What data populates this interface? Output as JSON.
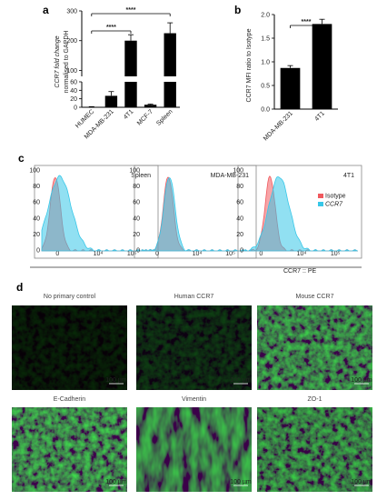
{
  "panels": {
    "a": "a",
    "b": "b",
    "c": "c",
    "d": "d"
  },
  "chart_data": [
    {
      "id": "a",
      "type": "bar",
      "ylabel_line1": "CCR7 fold change",
      "ylabel_line2": "normalised to GAPDH",
      "categories": [
        "HUMEC",
        "MDA-MB-231",
        "4T1",
        "MCF-7",
        "Spleen"
      ],
      "values": [
        1,
        27,
        200,
        6,
        225
      ],
      "errors": [
        0.5,
        10,
        20,
        1.5,
        35
      ],
      "axis_break": [
        60,
        80
      ],
      "ylim": [
        0,
        300
      ],
      "yticks_low": [
        "0",
        "20",
        "40",
        "60"
      ],
      "yticks_high": [
        "100",
        "200",
        "300"
      ],
      "significance": [
        {
          "from": "HUMEC",
          "to": "4T1",
          "label": "****"
        },
        {
          "from": "HUMEC",
          "to": "Spleen",
          "label": "****"
        }
      ],
      "bar_colors": [
        "#000000",
        "#000000",
        "#000000",
        "#000000",
        "#000000"
      ]
    },
    {
      "id": "b",
      "type": "bar",
      "ylabel": "CCR7 MFI ratio to Isotype",
      "categories": [
        "MDA-MB-231",
        "4T1"
      ],
      "values": [
        0.87,
        1.8
      ],
      "errors": [
        0.05,
        0.1
      ],
      "ylim": [
        0,
        2.0
      ],
      "yticks": [
        "0.0",
        "0.5",
        "1.0",
        "1.5",
        "2.0"
      ],
      "significance": [
        {
          "from": "MDA-MB-231",
          "to": "4T1",
          "label": "****"
        }
      ]
    },
    {
      "id": "c",
      "type": "area",
      "xlabel": "CCR7 :: PE",
      "yticks": [
        "0",
        "20",
        "40",
        "60",
        "80",
        "100"
      ],
      "xticks": [
        "0",
        "10⁴",
        "10⁵"
      ],
      "legend": [
        "Isotype",
        "CCR7"
      ],
      "colors": {
        "isotype": "#f0595e",
        "ccr7": "#37c7e8"
      },
      "panels": [
        {
          "title": "Spleen",
          "isotype_peak": 0.12,
          "ccr7_peak": 0.16,
          "ccr7_width": 0.1
        },
        {
          "title": "MDA-MB-231",
          "isotype_peak": 0.24,
          "ccr7_peak": 0.25,
          "ccr7_width": 0.05
        },
        {
          "title": "4T1",
          "isotype_peak": 0.22,
          "ccr7_peak": 0.3,
          "ccr7_width": 0.09
        }
      ]
    }
  ],
  "micrographs": [
    {
      "title": "No primary control",
      "scale": "100 µm",
      "brightness": 0.02
    },
    {
      "title": "Human CCR7",
      "scale": "100 µm",
      "brightness": 0.05
    },
    {
      "title": "Mouse CCR7",
      "scale": "100 µm",
      "brightness": 0.55
    },
    {
      "title": "E-Cadherin",
      "scale": "100 µm",
      "brightness": 0.6
    },
    {
      "title": "Vimentin",
      "scale": "100 µm",
      "brightness": 0.55
    },
    {
      "title": "ZO-1",
      "scale": "100 µm",
      "brightness": 0.5
    }
  ]
}
